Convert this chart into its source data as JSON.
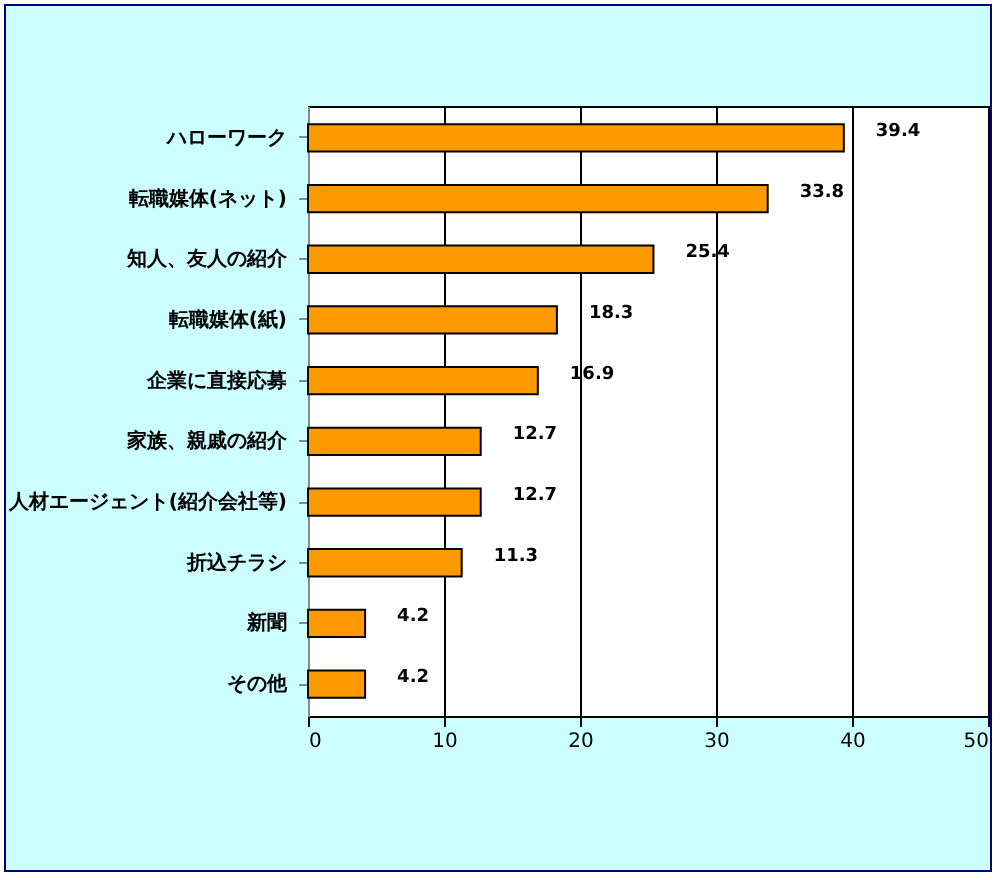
{
  "chart_data": {
    "type": "bar",
    "orientation": "horizontal",
    "categories": [
      "ハローワーク",
      "転職媒体(ネット)",
      "知人、友人の紹介",
      "転職媒体(紙)",
      "企業に直接応募",
      "家族、親戚の紹介",
      "人材エージェント(紹介会社等)",
      "折込チラシ",
      "新聞",
      "その他"
    ],
    "values": [
      39.4,
      33.8,
      25.4,
      18.3,
      16.9,
      12.7,
      12.7,
      11.3,
      4.2,
      4.2
    ],
    "color": "#ff9900",
    "xlim": [
      0,
      50
    ],
    "xticks": [
      0,
      10,
      20,
      30,
      40,
      50
    ],
    "grid": "x",
    "data_labels": true
  }
}
